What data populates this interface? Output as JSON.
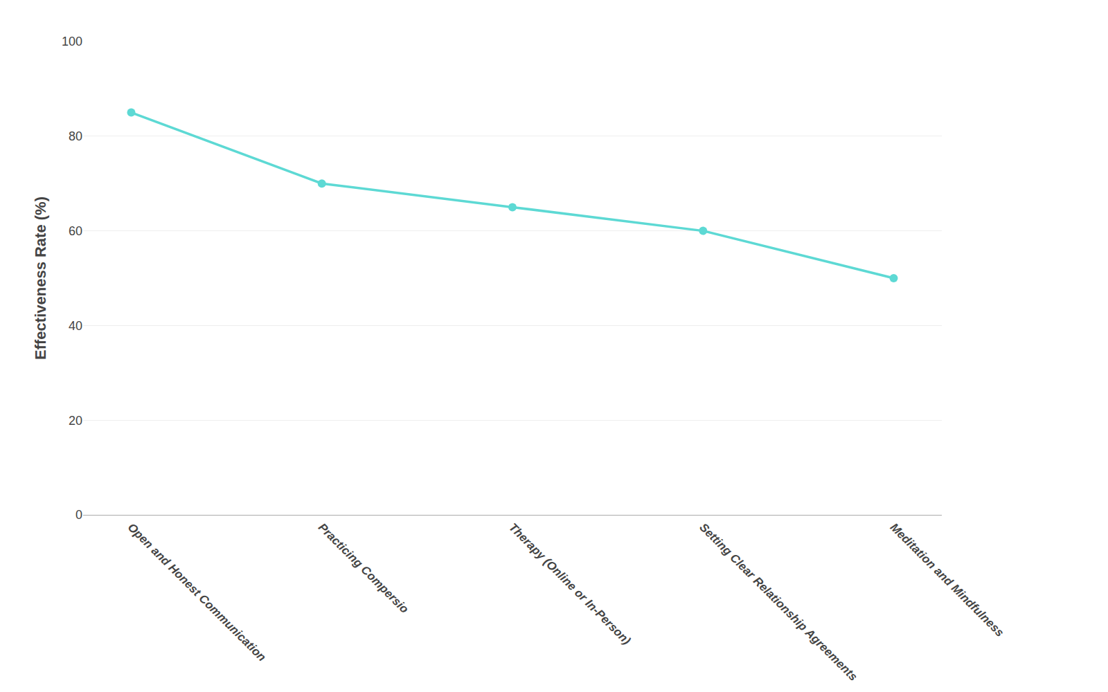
{
  "chart_data": {
    "type": "line",
    "categories": [
      "Open and Honest Communication",
      "Practicing Compersio",
      "Therapy (Online or In-Person)",
      "Setting Clear Relationship Agreements",
      "Meditation and Mindfulness"
    ],
    "values": [
      85,
      70,
      65,
      60,
      50
    ],
    "color": "#5dd9d4",
    "marker": "circle",
    "ylabel": "Effectiveness Rate (%)",
    "ylim": [
      0,
      100
    ],
    "yticks": [
      0,
      20,
      40,
      60,
      80,
      100
    ],
    "grid": true
  }
}
